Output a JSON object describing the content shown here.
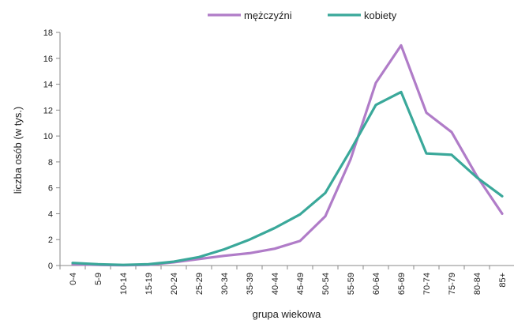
{
  "chart_data": {
    "type": "line",
    "xlabel": "grupa wiekowa",
    "ylabel": "liczba osób (w tys.)",
    "ylim": [
      0,
      18
    ],
    "yticks": [
      0,
      2,
      4,
      6,
      8,
      10,
      12,
      14,
      16,
      18
    ],
    "grid": false,
    "legend_position": "top",
    "categories": [
      "0-4",
      "5-9",
      "10-14",
      "15-19",
      "20-24",
      "25-29",
      "30-34",
      "35-39",
      "40-44",
      "45-49",
      "50-54",
      "55-59",
      "60-64",
      "65-69",
      "70-74",
      "75-79",
      "80-84",
      "85+"
    ],
    "series": [
      {
        "name": "mężczyźni",
        "color": "#b07cc8",
        "values": [
          0.1,
          0.05,
          0.02,
          0.05,
          0.25,
          0.5,
          0.75,
          0.95,
          1.3,
          1.9,
          3.8,
          8.2,
          14.1,
          17.0,
          11.8,
          10.3,
          6.9,
          4.0
        ]
      },
      {
        "name": "kobiety",
        "color": "#3aa89a",
        "values": [
          0.2,
          0.1,
          0.05,
          0.1,
          0.3,
          0.65,
          1.25,
          2.0,
          2.9,
          3.95,
          5.6,
          8.9,
          12.4,
          13.4,
          8.65,
          8.55,
          6.8,
          5.35
        ]
      }
    ]
  }
}
